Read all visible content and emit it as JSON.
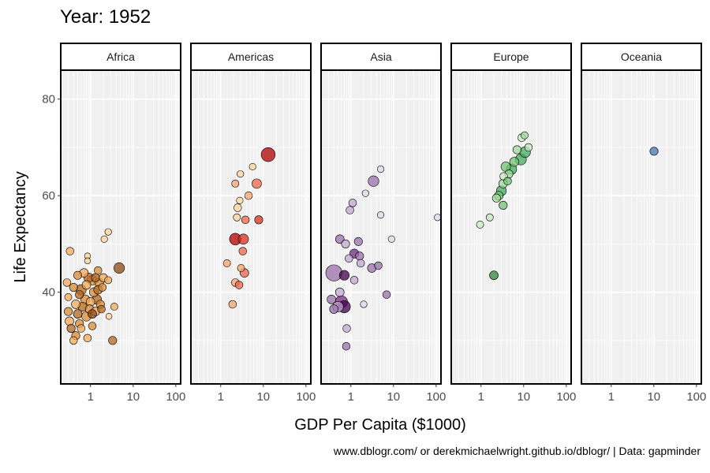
{
  "chart_data": {
    "type": "scatter",
    "title": "Year: 1952",
    "xlabel": "GDP Per Capita ($1000)",
    "ylabel": "Life Expectancy",
    "x_scale": "log",
    "x_ticks": [
      1,
      10,
      100
    ],
    "x_tick_labels": [
      "1",
      "10",
      "100"
    ],
    "y_ticks": [
      40,
      60,
      80
    ],
    "y_tick_labels": [
      "40",
      "60",
      "80"
    ],
    "xlim": [
      0.2,
      130
    ],
    "ylim": [
      21,
      86
    ],
    "grid": true,
    "caption": "www.dblogr.com/ or derekmichaelwright.github.io/dblogr/ | Data: gapminder",
    "facets": [
      {
        "name": "Africa",
        "colors": [
          "#fdd49e",
          "#f3a95a",
          "#d98b34",
          "#b4681c",
          "#8a4a12"
        ],
        "points": [
          {
            "x": 0.33,
            "y": 48.5,
            "s": 0.8,
            "c": 1
          },
          {
            "x": 0.85,
            "y": 47.5,
            "s": 0.5,
            "c": 0
          },
          {
            "x": 0.85,
            "y": 46.5,
            "s": 0.5,
            "c": 0
          },
          {
            "x": 1.5,
            "y": 44.5,
            "s": 0.8,
            "c": 2
          },
          {
            "x": 2.6,
            "y": 52.5,
            "s": 0.6,
            "c": 0
          },
          {
            "x": 2.1,
            "y": 51,
            "s": 0.6,
            "c": 0
          },
          {
            "x": 4.7,
            "y": 45,
            "s": 1.5,
            "c": 4
          },
          {
            "x": 0.28,
            "y": 42,
            "s": 0.8,
            "c": 1
          },
          {
            "x": 0.5,
            "y": 43.5,
            "s": 0.9,
            "c": 2
          },
          {
            "x": 0.7,
            "y": 44,
            "s": 1.0,
            "c": 1
          },
          {
            "x": 0.9,
            "y": 43,
            "s": 1.2,
            "c": 3
          },
          {
            "x": 1.1,
            "y": 42.5,
            "s": 1.3,
            "c": 2
          },
          {
            "x": 1.3,
            "y": 43,
            "s": 0.9,
            "c": 3
          },
          {
            "x": 1.6,
            "y": 42,
            "s": 1.1,
            "c": 2
          },
          {
            "x": 2.0,
            "y": 43,
            "s": 0.9,
            "c": 1
          },
          {
            "x": 2.6,
            "y": 42.5,
            "s": 0.7,
            "c": 1
          },
          {
            "x": 0.4,
            "y": 41,
            "s": 0.9,
            "c": 2
          },
          {
            "x": 0.6,
            "y": 40.5,
            "s": 1.4,
            "c": 3
          },
          {
            "x": 0.8,
            "y": 41.5,
            "s": 1.0,
            "c": 1
          },
          {
            "x": 1.2,
            "y": 40,
            "s": 1.1,
            "c": 2
          },
          {
            "x": 1.5,
            "y": 40.5,
            "s": 1.0,
            "c": 3
          },
          {
            "x": 1.9,
            "y": 41,
            "s": 0.8,
            "c": 2
          },
          {
            "x": 0.3,
            "y": 39,
            "s": 0.7,
            "c": 1
          },
          {
            "x": 0.55,
            "y": 39.5,
            "s": 0.9,
            "c": 3
          },
          {
            "x": 0.75,
            "y": 38.5,
            "s": 1.1,
            "c": 2
          },
          {
            "x": 1.0,
            "y": 38,
            "s": 1.0,
            "c": 1
          },
          {
            "x": 1.4,
            "y": 38.5,
            "s": 1.2,
            "c": 3
          },
          {
            "x": 1.7,
            "y": 37.5,
            "s": 0.9,
            "c": 2
          },
          {
            "x": 0.45,
            "y": 37.5,
            "s": 1.0,
            "c": 1
          },
          {
            "x": 0.65,
            "y": 37,
            "s": 1.1,
            "c": 3
          },
          {
            "x": 0.95,
            "y": 36.5,
            "s": 1.0,
            "c": 2
          },
          {
            "x": 1.3,
            "y": 36,
            "s": 1.0,
            "c": 1
          },
          {
            "x": 1.8,
            "y": 36.5,
            "s": 0.8,
            "c": 3
          },
          {
            "x": 3.6,
            "y": 37,
            "s": 0.7,
            "c": 1
          },
          {
            "x": 0.3,
            "y": 36,
            "s": 0.9,
            "c": 2
          },
          {
            "x": 0.5,
            "y": 35.5,
            "s": 1.0,
            "c": 3
          },
          {
            "x": 0.8,
            "y": 35,
            "s": 1.2,
            "c": 2
          },
          {
            "x": 1.1,
            "y": 35.5,
            "s": 1.0,
            "c": 4
          },
          {
            "x": 2.7,
            "y": 35,
            "s": 0.5,
            "c": 0
          },
          {
            "x": 0.32,
            "y": 34,
            "s": 1.0,
            "c": 1
          },
          {
            "x": 0.55,
            "y": 33.5,
            "s": 0.9,
            "c": 2
          },
          {
            "x": 0.35,
            "y": 32.5,
            "s": 0.9,
            "c": 3
          },
          {
            "x": 0.6,
            "y": 32.5,
            "s": 0.8,
            "c": 1
          },
          {
            "x": 1.1,
            "y": 33,
            "s": 0.8,
            "c": 2
          },
          {
            "x": 0.45,
            "y": 31,
            "s": 0.9,
            "c": 2
          },
          {
            "x": 0.4,
            "y": 30,
            "s": 0.8,
            "c": 1
          },
          {
            "x": 0.85,
            "y": 30.5,
            "s": 0.8,
            "c": 1
          },
          {
            "x": 3.3,
            "y": 30,
            "s": 0.9,
            "c": 3
          }
        ]
      },
      {
        "name": "Americas",
        "colors": [
          "#fdd49e",
          "#f7a36c",
          "#ef6548",
          "#d7301f",
          "#b30000"
        ],
        "points": [
          {
            "x": 5.6,
            "y": 66,
            "s": 0.6,
            "c": 0
          },
          {
            "x": 2.9,
            "y": 64.5,
            "s": 0.6,
            "c": 0
          },
          {
            "x": 2.2,
            "y": 62.5,
            "s": 0.7,
            "c": 1
          },
          {
            "x": 7.0,
            "y": 62.5,
            "s": 1.2,
            "c": 2
          },
          {
            "x": 13,
            "y": 68.5,
            "s": 2.6,
            "c": 4
          },
          {
            "x": 4.5,
            "y": 60,
            "s": 0.8,
            "c": 1
          },
          {
            "x": 2.8,
            "y": 59,
            "s": 0.6,
            "c": 0
          },
          {
            "x": 2.5,
            "y": 57.5,
            "s": 0.8,
            "c": 0
          },
          {
            "x": 2.4,
            "y": 55.5,
            "s": 0.7,
            "c": 0
          },
          {
            "x": 3.8,
            "y": 55,
            "s": 0.8,
            "c": 2
          },
          {
            "x": 7.8,
            "y": 55,
            "s": 0.9,
            "c": 3
          },
          {
            "x": 2.2,
            "y": 51,
            "s": 1.8,
            "c": 4
          },
          {
            "x": 3.4,
            "y": 51,
            "s": 1.4,
            "c": 3
          },
          {
            "x": 3.3,
            "y": 48.5,
            "s": 0.8,
            "c": 2
          },
          {
            "x": 1.4,
            "y": 46,
            "s": 0.7,
            "c": 1
          },
          {
            "x": 3.0,
            "y": 45,
            "s": 0.7,
            "c": 1
          },
          {
            "x": 3.6,
            "y": 44,
            "s": 1.0,
            "c": 2
          },
          {
            "x": 2.2,
            "y": 42,
            "s": 0.8,
            "c": 1
          },
          {
            "x": 2.7,
            "y": 41.5,
            "s": 0.8,
            "c": 2
          },
          {
            "x": 1.9,
            "y": 37.5,
            "s": 0.8,
            "c": 1
          }
        ]
      },
      {
        "name": "Asia",
        "colors": [
          "#dadaeb",
          "#c2a5cf",
          "#9970ab",
          "#762a83",
          "#40004b"
        ],
        "points": [
          {
            "x": 5.0,
            "y": 65.5,
            "s": 0.6,
            "c": 0
          },
          {
            "x": 3.4,
            "y": 63,
            "s": 1.5,
            "c": 2
          },
          {
            "x": 2.2,
            "y": 60.5,
            "s": 0.6,
            "c": 0
          },
          {
            "x": 1.1,
            "y": 58.5,
            "s": 0.8,
            "c": 1
          },
          {
            "x": 0.95,
            "y": 57,
            "s": 0.8,
            "c": 1
          },
          {
            "x": 5.0,
            "y": 56,
            "s": 0.6,
            "c": 0
          },
          {
            "x": 108,
            "y": 55.5,
            "s": 0.6,
            "c": 0
          },
          {
            "x": 9.0,
            "y": 51,
            "s": 0.6,
            "c": 0
          },
          {
            "x": 0.55,
            "y": 51,
            "s": 1.0,
            "c": 2
          },
          {
            "x": 0.75,
            "y": 50,
            "s": 0.9,
            "c": 1
          },
          {
            "x": 1.5,
            "y": 50.5,
            "s": 0.9,
            "c": 2
          },
          {
            "x": 1.2,
            "y": 48,
            "s": 1.1,
            "c": 3
          },
          {
            "x": 1.6,
            "y": 47.5,
            "s": 0.9,
            "c": 2
          },
          {
            "x": 0.9,
            "y": 47,
            "s": 0.8,
            "c": 1
          },
          {
            "x": 1.7,
            "y": 46,
            "s": 0.8,
            "c": 1
          },
          {
            "x": 3.1,
            "y": 45,
            "s": 1.0,
            "c": 2
          },
          {
            "x": 4.4,
            "y": 45.5,
            "s": 0.8,
            "c": 2
          },
          {
            "x": 0.4,
            "y": 44,
            "s": 3.5,
            "c": 2
          },
          {
            "x": 0.7,
            "y": 43.5,
            "s": 1.3,
            "c": 4
          },
          {
            "x": 1.2,
            "y": 42.5,
            "s": 0.8,
            "c": 1
          },
          {
            "x": 0.55,
            "y": 40,
            "s": 1.0,
            "c": 1
          },
          {
            "x": 6.9,
            "y": 39.5,
            "s": 0.8,
            "c": 2
          },
          {
            "x": 0.35,
            "y": 38.5,
            "s": 1.0,
            "c": 2
          },
          {
            "x": 0.6,
            "y": 38,
            "s": 2.0,
            "c": 3
          },
          {
            "x": 0.7,
            "y": 37,
            "s": 2.0,
            "c": 4
          },
          {
            "x": 0.5,
            "y": 37,
            "s": 1.5,
            "c": 1
          },
          {
            "x": 0.4,
            "y": 36.5,
            "s": 1.0,
            "c": 2
          },
          {
            "x": 2.0,
            "y": 37.5,
            "s": 0.6,
            "c": 0
          },
          {
            "x": 0.8,
            "y": 32.5,
            "s": 0.8,
            "c": 1
          },
          {
            "x": 0.78,
            "y": 28.8,
            "s": 0.8,
            "c": 2
          }
        ]
      },
      {
        "name": "Europe",
        "colors": [
          "#c7e9c0",
          "#a1d99b",
          "#74c476",
          "#41ab5d",
          "#2b8a3e"
        ],
        "points": [
          {
            "x": 9.0,
            "y": 72,
            "s": 0.8,
            "c": 0
          },
          {
            "x": 10.5,
            "y": 72.5,
            "s": 0.7,
            "c": 1
          },
          {
            "x": 13,
            "y": 70,
            "s": 0.8,
            "c": 0
          },
          {
            "x": 7.0,
            "y": 69.5,
            "s": 0.9,
            "c": 1
          },
          {
            "x": 10.8,
            "y": 69,
            "s": 1.5,
            "c": 3
          },
          {
            "x": 8.6,
            "y": 67.5,
            "s": 1.6,
            "c": 3
          },
          {
            "x": 6.0,
            "y": 67,
            "s": 1.1,
            "c": 2
          },
          {
            "x": 3.8,
            "y": 66,
            "s": 1.2,
            "c": 2
          },
          {
            "x": 5.2,
            "y": 65.5,
            "s": 1.4,
            "c": 3
          },
          {
            "x": 4.5,
            "y": 64.5,
            "s": 0.9,
            "c": 1
          },
          {
            "x": 3.4,
            "y": 64,
            "s": 0.8,
            "c": 0
          },
          {
            "x": 4.2,
            "y": 63,
            "s": 0.8,
            "c": 2
          },
          {
            "x": 3.3,
            "y": 62.5,
            "s": 1.0,
            "c": 1
          },
          {
            "x": 3.0,
            "y": 61,
            "s": 1.3,
            "c": 3
          },
          {
            "x": 2.6,
            "y": 60,
            "s": 1.0,
            "c": 2
          },
          {
            "x": 2.3,
            "y": 59.5,
            "s": 0.9,
            "c": 1
          },
          {
            "x": 3.3,
            "y": 58,
            "s": 0.9,
            "c": 2
          },
          {
            "x": 1.6,
            "y": 55.5,
            "s": 0.7,
            "c": 0
          },
          {
            "x": 0.95,
            "y": 54,
            "s": 0.7,
            "c": 0
          },
          {
            "x": 2.0,
            "y": 43.5,
            "s": 1.0,
            "c": 4
          }
        ]
      },
      {
        "name": "Oceania",
        "colors": [
          "#4575b4"
        ],
        "points": [
          {
            "x": 10.1,
            "y": 69.2,
            "s": 0.9,
            "c": 0
          }
        ]
      }
    ]
  }
}
